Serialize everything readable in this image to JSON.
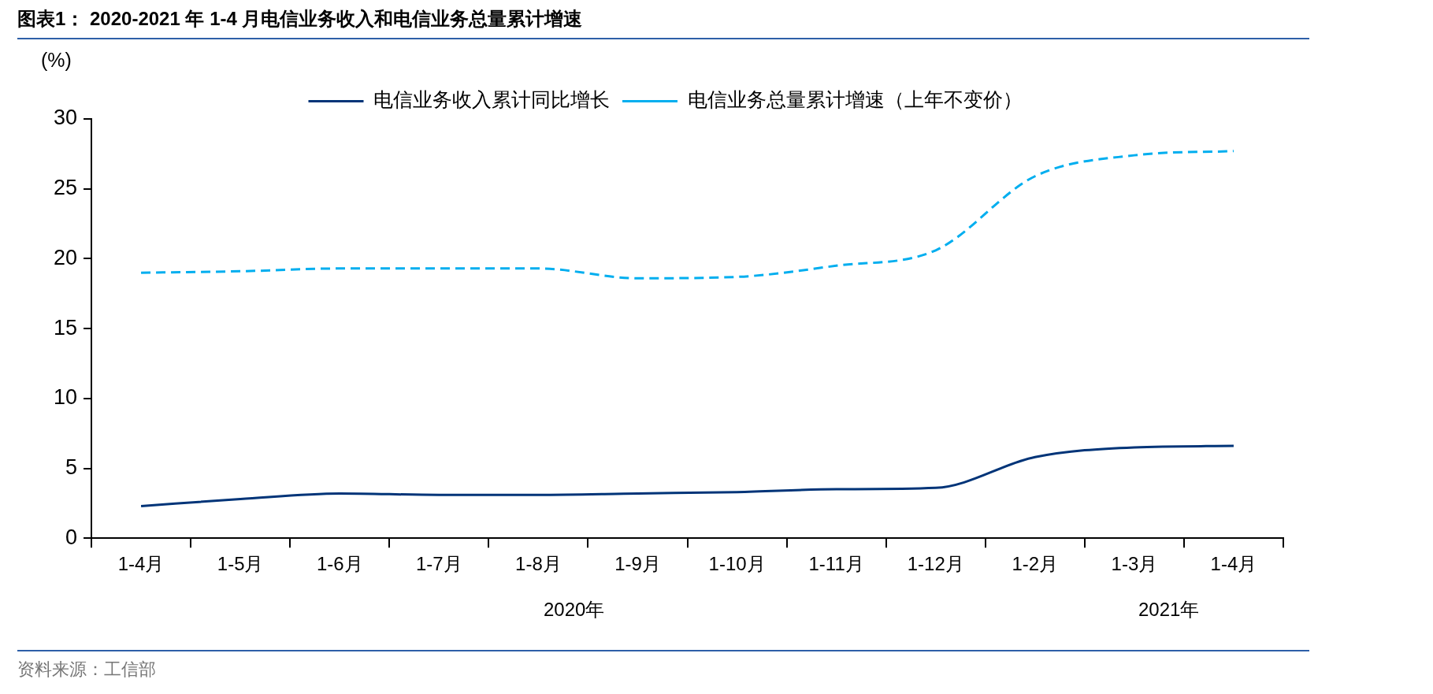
{
  "chart_data": {
    "type": "line",
    "title": "图表1：  2020-2021 年 1-4 月电信业务收入和电信业务总量累计增速",
    "ylabel": "(%)",
    "categories": [
      "1-4月",
      "1-5月",
      "1-6月",
      "1-7月",
      "1-8月",
      "1-9月",
      "1-10月",
      "1-11月",
      "1-12月",
      "1-2月",
      "1-3月",
      "1-4月"
    ],
    "series": [
      {
        "name": "电信业务收入累计同比增长",
        "color": "#003478",
        "line_style": "solid",
        "values": [
          2.3,
          2.8,
          3.2,
          3.1,
          3.1,
          3.2,
          3.3,
          3.5,
          3.6,
          5.8,
          6.5,
          6.6
        ]
      },
      {
        "name": "电信业务总量累计增速（上年不变价）",
        "color": "#00aeef",
        "line_style": "dashed",
        "values": [
          19.0,
          19.1,
          19.3,
          19.3,
          19.3,
          18.6,
          18.7,
          19.5,
          20.6,
          25.9,
          27.4,
          27.7
        ]
      }
    ],
    "ylim": [
      0,
      30
    ],
    "yticks": [
      0,
      5,
      10,
      15,
      20,
      25,
      30
    ],
    "grid": false,
    "legend": "top",
    "marker": "none",
    "annotations": [
      "2020年",
      "2021年",
      "资料来源：工信部"
    ]
  }
}
